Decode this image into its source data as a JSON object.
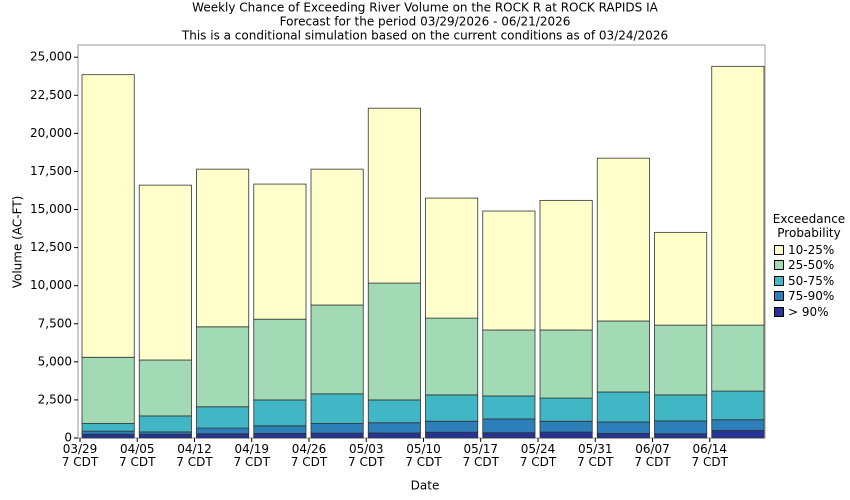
{
  "chart_data": {
    "type": "stacked_bar",
    "title": "Weekly Chance of Exceeding River Volume on the ROCK R at ROCK RAPIDS IA",
    "subtitle": "Forecast for the period 03/29/2026 - 06/21/2026",
    "subtitle2": "This is a conditional simulation based on the current conditions as of 03/24/2026",
    "x_label": "Date",
    "y_label": "Volume (AC-FT)",
    "categories": [
      "03/29\n7 CDT",
      "04/05\n7 CDT",
      "04/12\n7 CDT",
      "04/19\n7 CDT",
      "04/26\n7 CDT",
      "05/03\n7 CDT",
      "05/10\n7 CDT",
      "05/17\n7 CDT",
      "05/24\n7 CDT",
      "05/31\n7 CDT",
      "06/07\n7 CDT",
      "06/14\n7 CDT"
    ],
    "legend_title": "Exceedance Probability",
    "legend_position": "right",
    "series": [
      {
        "name": "10-25%",
        "color": "#ffffcc",
        "values": [
          18550,
          11480,
          10350,
          8870,
          8920,
          11480,
          7880,
          7810,
          8510,
          10690,
          6090,
          16990
        ]
      },
      {
        "name": "25-50%",
        "color": "#a1dab4",
        "values": [
          4350,
          3670,
          5250,
          5300,
          5830,
          7670,
          5040,
          4330,
          4470,
          4660,
          4580,
          4330
        ]
      },
      {
        "name": "50-75%",
        "color": "#41b6c4",
        "values": [
          500,
          1050,
          1400,
          1700,
          1950,
          1500,
          1730,
          1510,
          1520,
          1970,
          1710,
          1880
        ]
      },
      {
        "name": "75-90%",
        "color": "#2c7fb8",
        "values": [
          200,
          150,
          370,
          500,
          630,
          670,
          720,
          900,
          710,
          750,
          840,
          700
        ]
      },
      {
        "name": "> 90%",
        "color": "#253494",
        "values": [
          250,
          250,
          280,
          300,
          320,
          330,
          380,
          350,
          390,
          300,
          280,
          500
        ]
      }
    ],
    "ylim": [
      0,
      25800
    ],
    "yticks": [
      0,
      {
        "value": 2500,
        "label": "2,500"
      },
      {
        "value": 5000,
        "label": "5,000"
      },
      {
        "value": 7500,
        "label": "7,500"
      },
      {
        "value": 10000,
        "label": "10,000"
      },
      {
        "value": 12500,
        "label": "12,500"
      },
      {
        "value": 15000,
        "label": "15,000"
      },
      {
        "value": 17500,
        "label": "17,500"
      },
      {
        "value": 20000,
        "label": "20,000"
      },
      {
        "value": 22500,
        "label": "22,500"
      },
      {
        "value": 25000,
        "label": "25,000"
      }
    ],
    "grid": false
  }
}
